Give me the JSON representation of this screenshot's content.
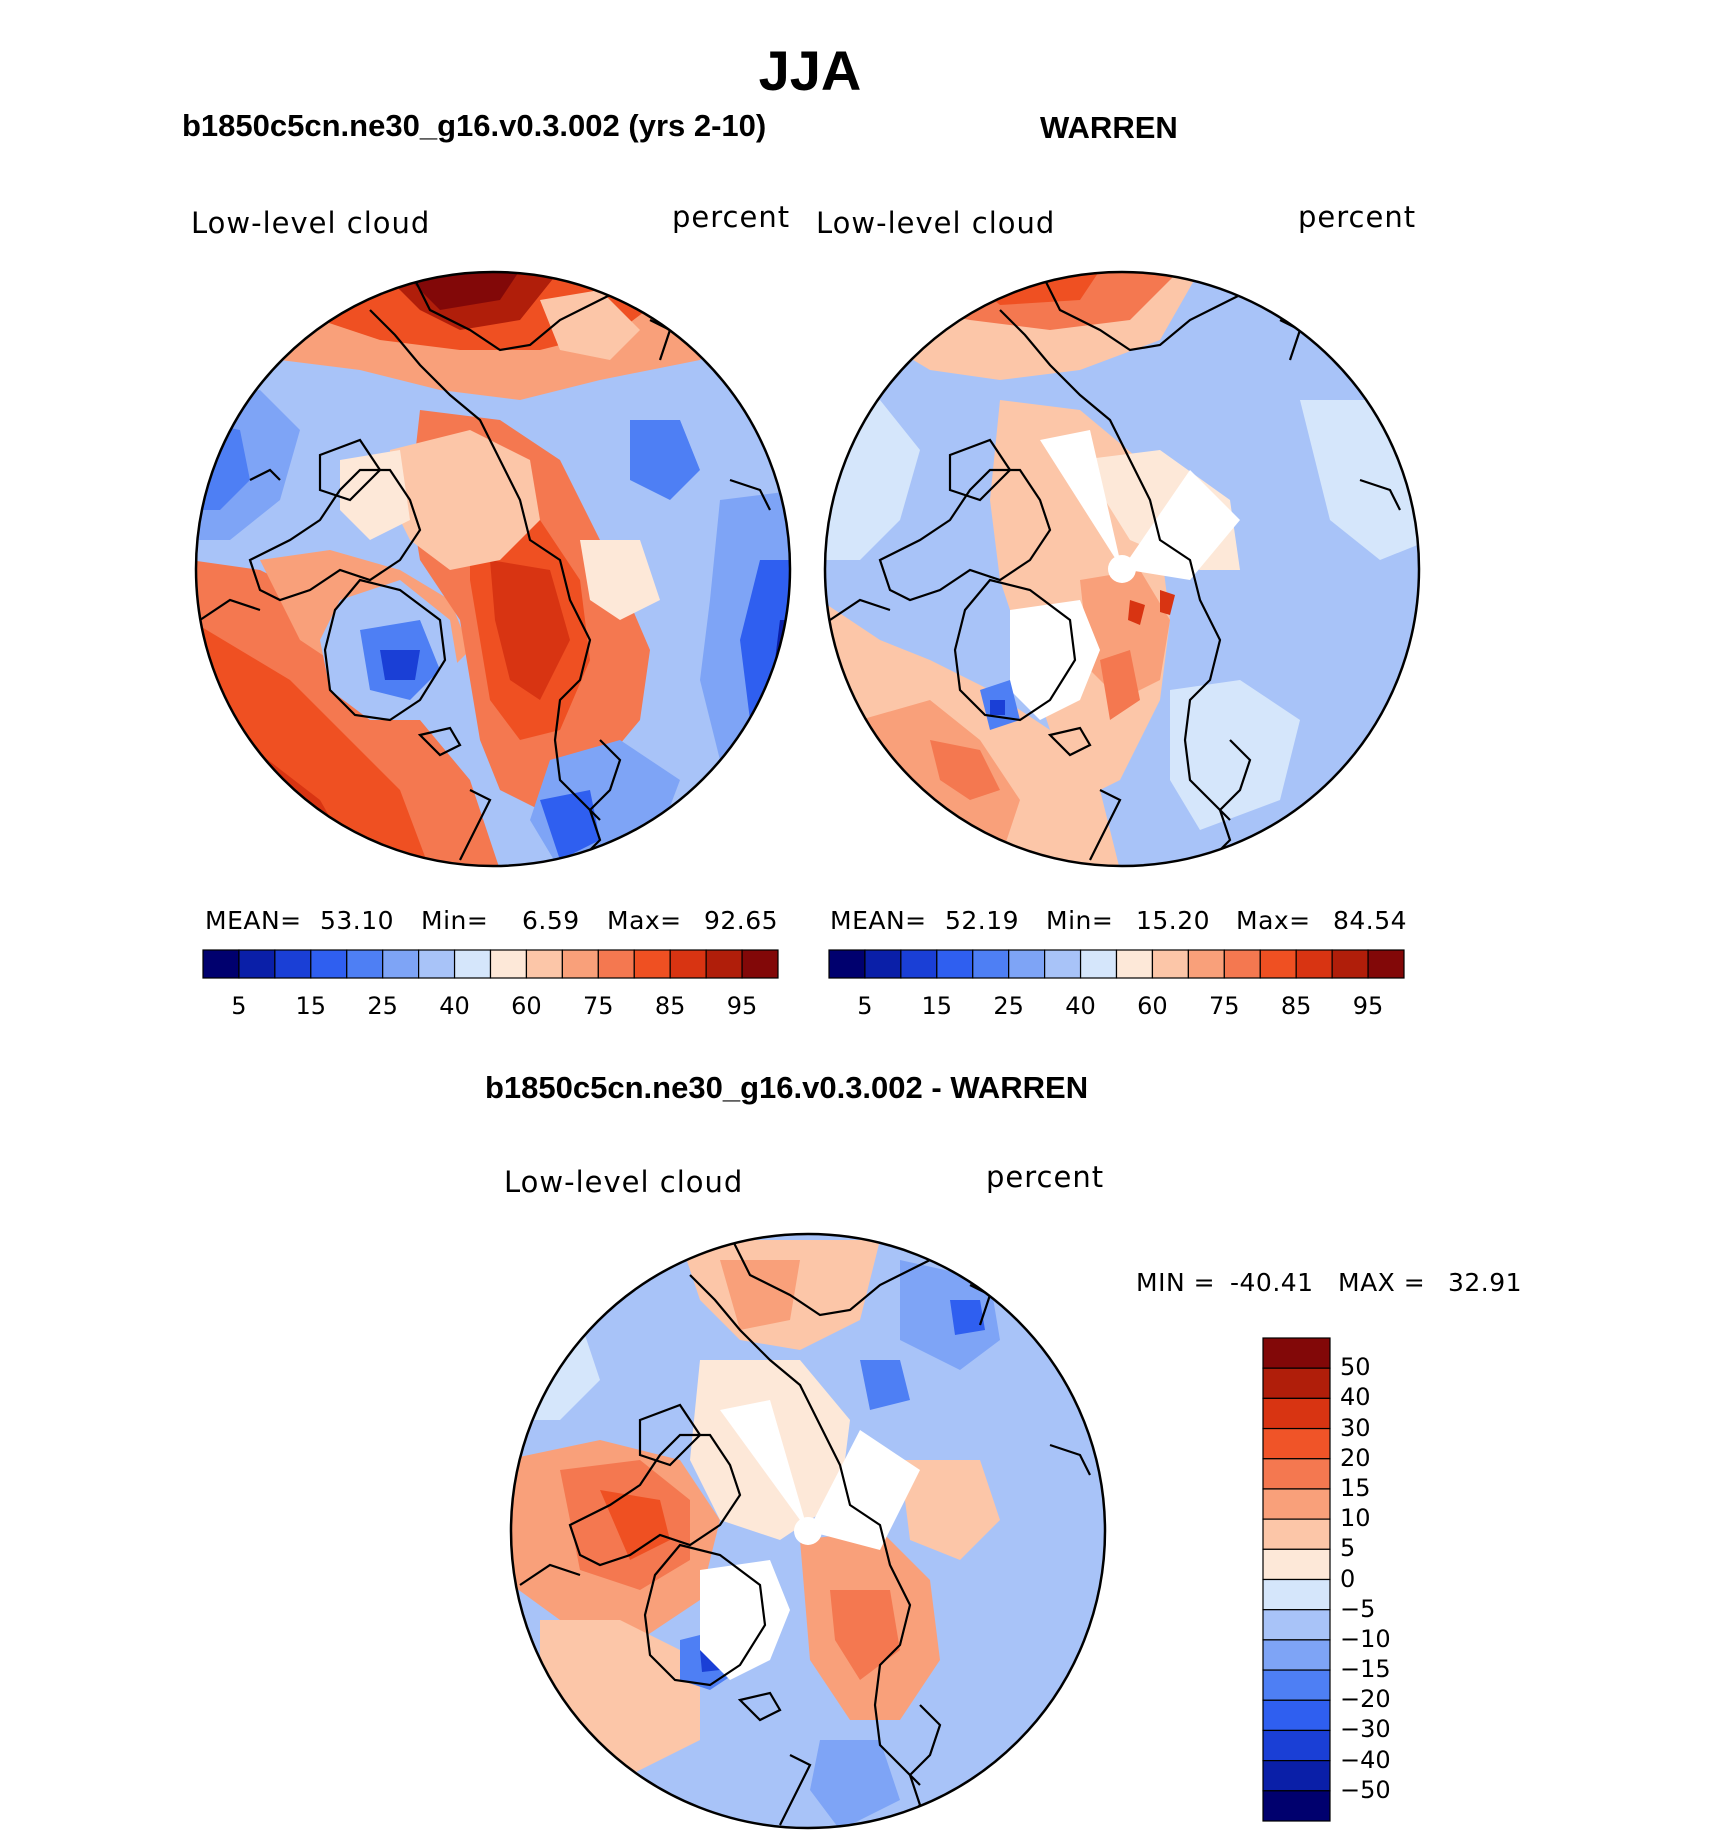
{
  "main_title": "JJA",
  "panels": [
    {
      "title": "b1850c5cn.ne30_g16.v0.3.002 (yrs 2-10)",
      "variable": "Low-level cloud",
      "units": "percent",
      "stats": {
        "mean_label": "MEAN=",
        "mean": "53.10",
        "min_label": "Min=",
        "min": "6.59",
        "max_label": "Max=",
        "max": "92.65"
      }
    },
    {
      "title": "WARREN",
      "variable": "Low-level cloud",
      "units": "percent",
      "stats": {
        "mean_label": "MEAN=",
        "mean": "52.19",
        "min_label": "Min=",
        "min": "15.20",
        "max_label": "Max=",
        "max": "84.54"
      }
    },
    {
      "title": "b1850c5cn.ne30_g16.v0.3.002 - WARREN",
      "variable": "Low-level cloud",
      "units": "percent",
      "stats": {
        "min_label": "MIN =",
        "min": "-40.41",
        "max_label": "MAX =",
        "max": "32.91"
      }
    }
  ],
  "colorbar_abs": {
    "colors": [
      "#00006e",
      "#0a1fa8",
      "#1a3fd6",
      "#2f5ff0",
      "#4e7ff4",
      "#7ea4f6",
      "#a8c3f8",
      "#d5e6fb",
      "#fde8d8",
      "#fcc6a8",
      "#f9a07a",
      "#f47850",
      "#ef5022",
      "#d83412",
      "#b01e0a",
      "#820808"
    ],
    "ticks": [
      "5",
      "15",
      "25",
      "40",
      "60",
      "75",
      "85",
      "95"
    ]
  },
  "colorbar_diff": {
    "colors_top_to_bottom": [
      "#820808",
      "#b01e0a",
      "#d83412",
      "#f05428",
      "#f47850",
      "#f9a07a",
      "#fcc6a8",
      "#fde8d8",
      "#d5e6fb",
      "#a8c3f8",
      "#7ea4f6",
      "#4e7ff4",
      "#2f5ff0",
      "#1a3fd6",
      "#0a1fa8",
      "#00006e"
    ],
    "ticks": [
      "50",
      "40",
      "30",
      "20",
      "15",
      "10",
      "5",
      "0",
      "−5",
      "−10",
      "−15",
      "−20",
      "−30",
      "−40",
      "−50"
    ]
  },
  "map_colors": {
    "coast": "#000000"
  }
}
